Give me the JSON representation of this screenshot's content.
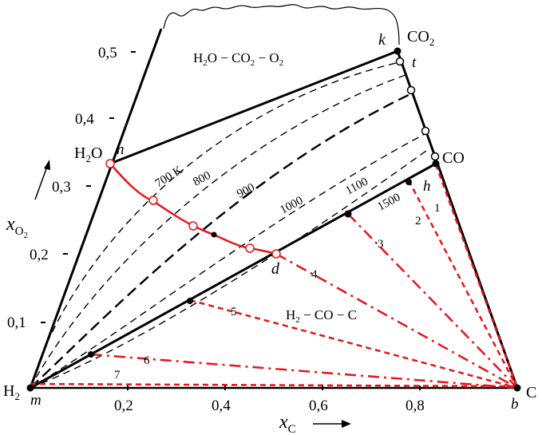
{
  "corners": {
    "h2": "H",
    "h2_sub": "2",
    "c": "C"
  },
  "species": {
    "co2": "CO",
    "co2_sub": "2",
    "co": "CO",
    "h2o": "H",
    "h2o_sub": "2",
    "h2o_tail": "O"
  },
  "points": {
    "m": "m",
    "b": "b",
    "k": "k",
    "t": "t",
    "n": "n",
    "h": "h",
    "d": "d"
  },
  "regions": {
    "upper": {
      "p1": "H",
      "s1": "2",
      "p2": "O − CO",
      "s2": "2",
      "p3": " − O",
      "s3": "2"
    },
    "lower": {
      "p1": "H",
      "s1": "2",
      "p2": " − CO − C"
    }
  },
  "axes": {
    "x_label": "x",
    "x_sub": "C",
    "y_label": "x",
    "y_sub": "O",
    "y_sub2": "2",
    "x_ticks": [
      "0,2",
      "0,4",
      "0,6",
      "0,8"
    ],
    "y_ticks": [
      "0,1",
      "0,2",
      "0,3",
      "0,4",
      "0,5"
    ]
  },
  "isotherms": [
    "700 K",
    "800",
    "900",
    "1000",
    "1100",
    "1500"
  ],
  "rays": [
    "1",
    "2",
    "3",
    "4",
    "5",
    "6",
    "7"
  ],
  "colors": {
    "line": "#000000",
    "red": "#e8141b"
  }
}
